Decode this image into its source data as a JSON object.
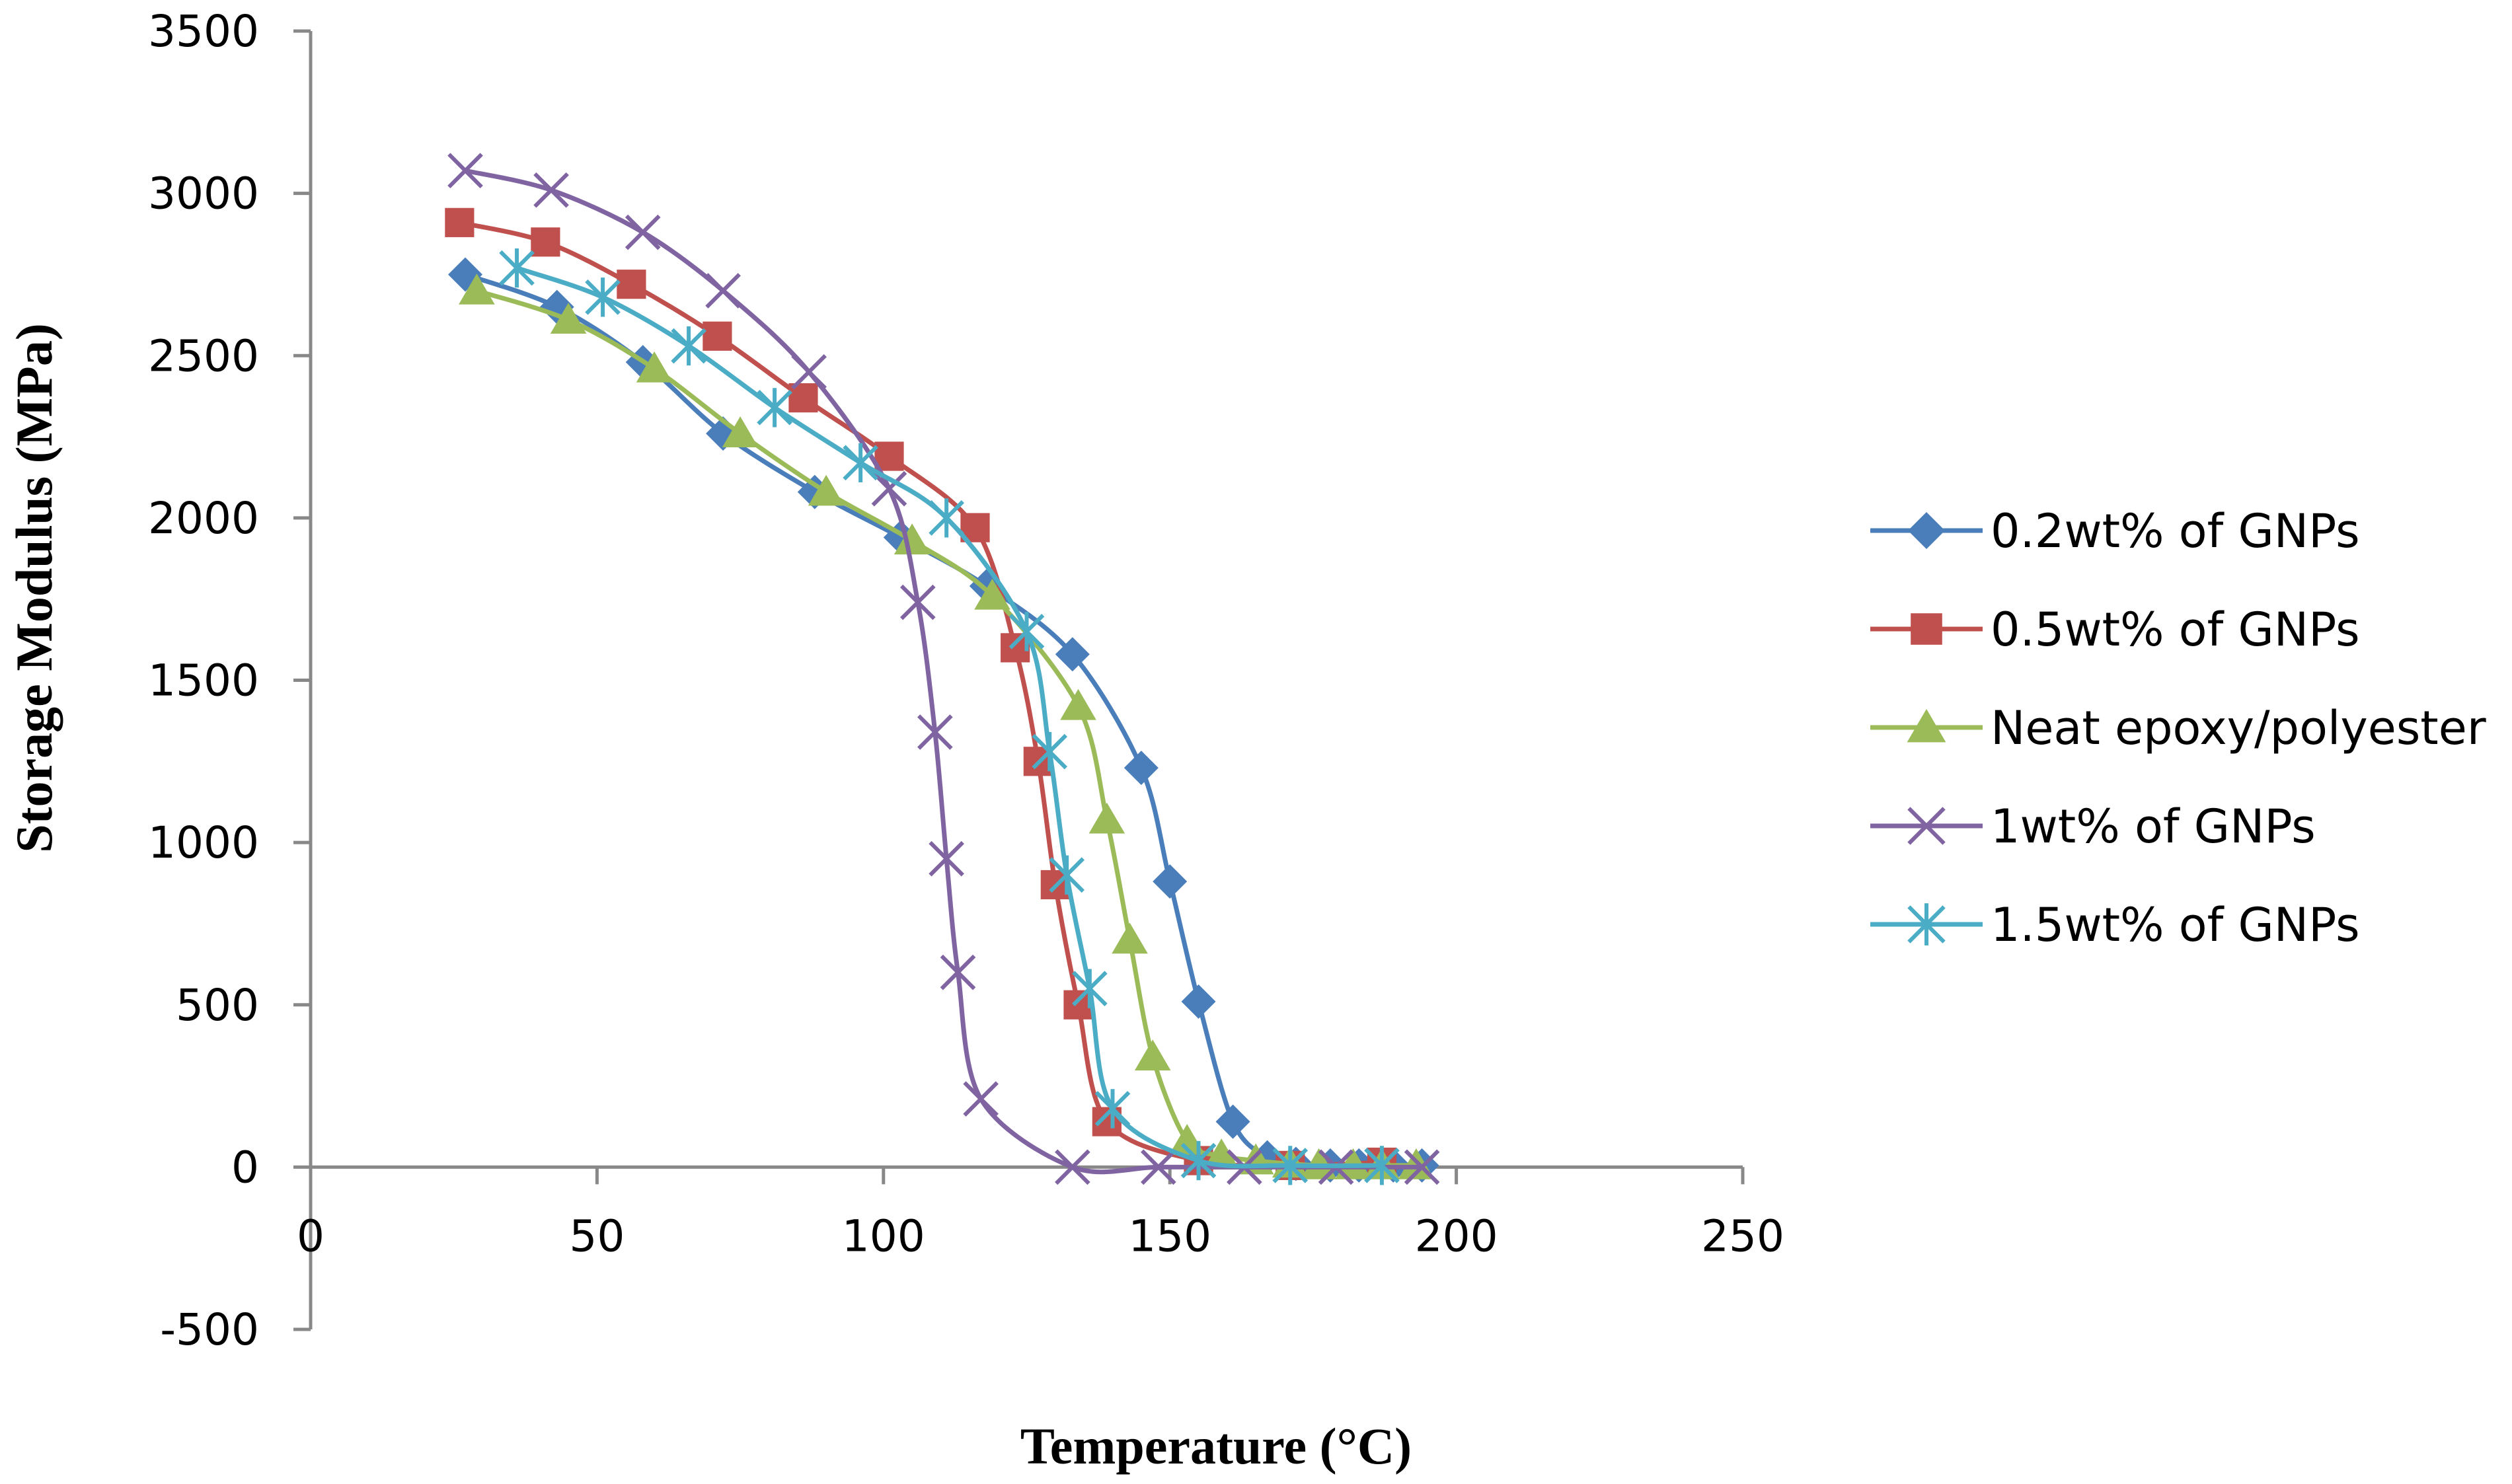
{
  "chart_data": {
    "type": "line",
    "title": "",
    "xlabel": "Temperature (°C)",
    "ylabel": "Storage Modulus (MPa)",
    "xlim": [
      0,
      250
    ],
    "ylim": [
      -500,
      3500
    ],
    "x_ticks": [
      "0",
      "50",
      "100",
      "150",
      "200",
      "250"
    ],
    "y_ticks": [
      "-500",
      "0",
      "500",
      "1000",
      "1500",
      "2000",
      "2500",
      "3000",
      "3500"
    ],
    "grid": false,
    "legend_position": "right",
    "series": [
      {
        "name": "0.2wt% of GNPs",
        "color": "#4a7ebb",
        "marker": "diamond",
        "x": [
          27,
          43,
          58,
          72,
          88,
          103,
          118,
          133,
          145,
          150,
          155,
          161,
          167,
          172,
          178,
          183,
          189,
          194
        ],
        "y": [
          2750,
          2650,
          2480,
          2260,
          2080,
          1940,
          1790,
          1580,
          1230,
          880,
          510,
          140,
          30,
          10,
          5,
          5,
          5,
          5
        ]
      },
      {
        "name": "0.5wt% of GNPs",
        "color": "#c0504d",
        "marker": "square",
        "x": [
          26,
          41,
          56,
          71,
          86,
          101,
          116,
          123,
          127,
          130,
          134,
          139,
          155,
          171,
          187
        ],
        "y": [
          2910,
          2850,
          2720,
          2560,
          2370,
          2190,
          1970,
          1600,
          1250,
          870,
          500,
          140,
          20,
          5,
          15
        ]
      },
      {
        "name": "Neat epoxy/polyester",
        "color": "#9bbb59",
        "marker": "triangle",
        "x": [
          29,
          45,
          60,
          75,
          90,
          105,
          119,
          134,
          139,
          143,
          147,
          153,
          159,
          165,
          171,
          176,
          182,
          187,
          193
        ],
        "y": [
          2700,
          2610,
          2460,
          2260,
          2080,
          1930,
          1760,
          1420,
          1070,
          700,
          340,
          80,
          35,
          20,
          10,
          5,
          5,
          5,
          5
        ]
      },
      {
        "name": "1wt% of GNPs",
        "color": "#8064a2",
        "marker": "x",
        "x": [
          27,
          42,
          58,
          72,
          87,
          101,
          106,
          109,
          111,
          113,
          117,
          133,
          148,
          163,
          179,
          194
        ],
        "y": [
          3070,
          3010,
          2880,
          2700,
          2450,
          2090,
          1740,
          1340,
          950,
          600,
          210,
          0,
          0,
          0,
          0,
          0
        ]
      },
      {
        "name": "1.5wt% of GNPs",
        "color": "#4bacc6",
        "marker": "star",
        "x": [
          36,
          51,
          66,
          81,
          96,
          111,
          125,
          129,
          132,
          136,
          140,
          155,
          171,
          187
        ],
        "y": [
          2770,
          2680,
          2530,
          2340,
          2170,
          2000,
          1650,
          1280,
          900,
          550,
          180,
          20,
          5,
          5
        ]
      }
    ]
  }
}
